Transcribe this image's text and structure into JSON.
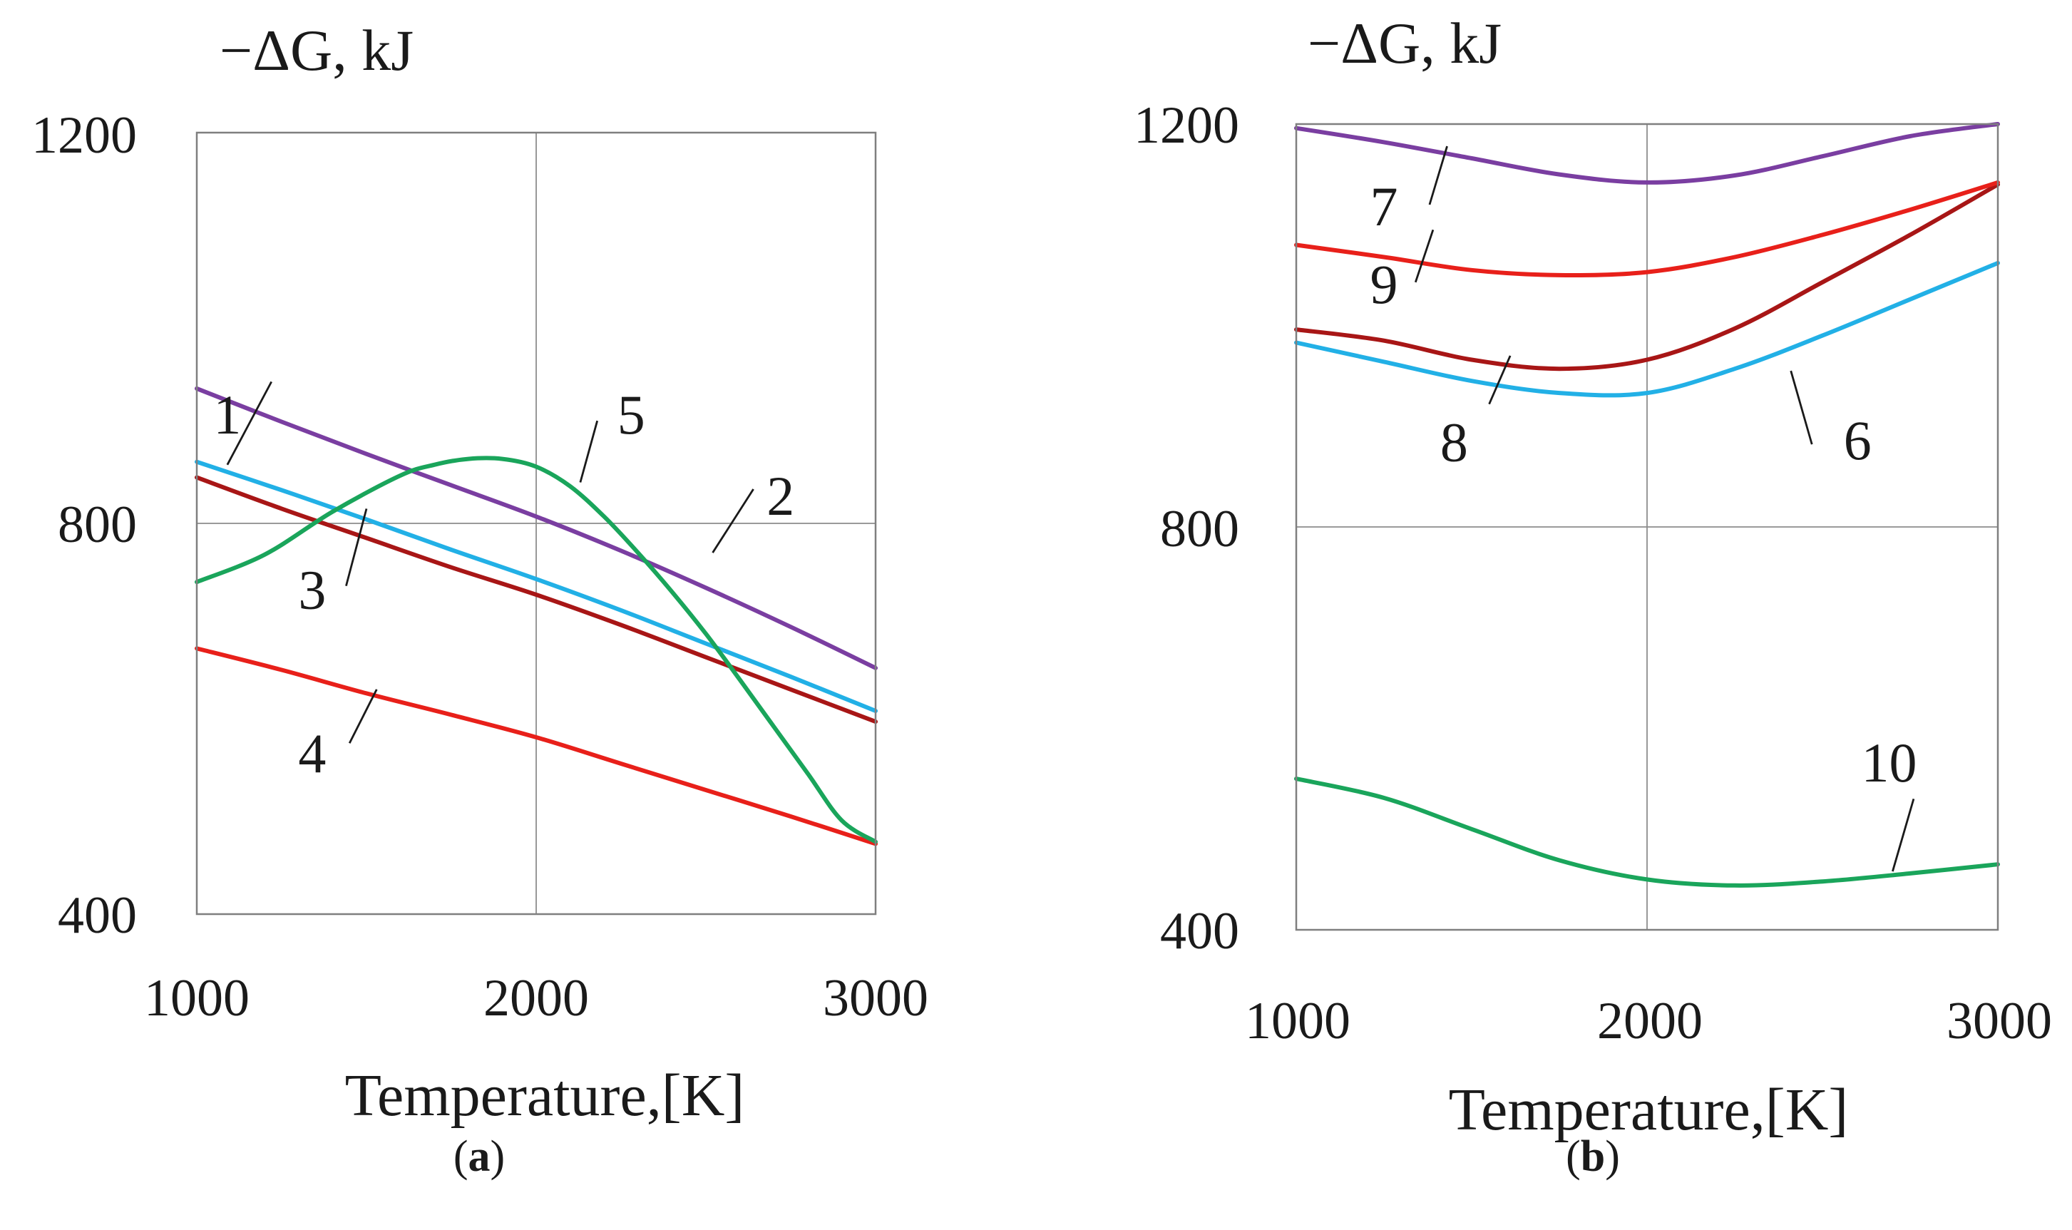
{
  "chart_data": [
    {
      "type": "line",
      "panel_label": "(a)",
      "panel_letter": "a",
      "ylabel": "−ΔG, kJ",
      "xlabel": "Temperature,[K]",
      "xlim": [
        1000,
        3000
      ],
      "ylim": [
        400,
        1200
      ],
      "xticks": [
        "1000",
        "2000",
        "3000"
      ],
      "yticks": [
        "400",
        "800",
        "1200"
      ],
      "grid": true,
      "series": [
        {
          "name": "1",
          "color": "#22b0e6",
          "x": [
            1000,
            1250,
            1500,
            1750,
            2000,
            2250,
            2500,
            2750,
            3000
          ],
          "y": [
            863,
            834,
            804,
            773,
            743,
            711,
            677,
            643,
            608
          ],
          "label_at": [
            1090,
            905
          ],
          "leader": [
            [
              1090,
              860
            ],
            [
              1220,
              945
            ]
          ]
        },
        {
          "name": "2",
          "color": "#7a3ea1",
          "x": [
            1000,
            1250,
            1500,
            1750,
            2000,
            2250,
            2500,
            2750,
            3000
          ],
          "y": [
            938,
            904,
            871,
            839,
            807,
            772,
            734,
            694,
            652
          ],
          "label_at": [
            2720,
            822
          ],
          "leader": [
            [
              2520,
              770
            ],
            [
              2640,
              835
            ]
          ]
        },
        {
          "name": "3",
          "color": "#a81616",
          "x": [
            1000,
            1250,
            1500,
            1750,
            2000,
            2250,
            2500,
            2750,
            3000
          ],
          "y": [
            847,
            815,
            785,
            755,
            727,
            696,
            663,
            630,
            597
          ],
          "label_at": [
            1340,
            726
          ],
          "leader": [
            [
              1440,
              736
            ],
            [
              1500,
              815
            ]
          ]
        },
        {
          "name": "4",
          "color": "#e8201a",
          "x": [
            1000,
            1250,
            1500,
            1750,
            2000,
            2250,
            2500,
            2750,
            3000
          ],
          "y": [
            672,
            650,
            626,
            604,
            581,
            554,
            527,
            500,
            472
          ],
          "label_at": [
            1340,
            558
          ],
          "leader": [
            [
              1450,
              575
            ],
            [
              1530,
              630
            ]
          ]
        },
        {
          "name": "5",
          "color": "#1aa55b",
          "x": [
            1000,
            1200,
            1400,
            1600,
            1700,
            1800,
            1900,
            2000,
            2100,
            2200,
            2300,
            2400,
            2500,
            2600,
            2700,
            2800,
            2900,
            3000
          ],
          "y": [
            740,
            768,
            812,
            849,
            860,
            866,
            866,
            858,
            838,
            807,
            770,
            730,
            687,
            640,
            592,
            544,
            496,
            474
          ],
          "label_at": [
            2280,
            905
          ],
          "leader": [
            [
              2130,
              842
            ],
            [
              2180,
              905
            ]
          ]
        }
      ]
    },
    {
      "type": "line",
      "panel_label": "(b)",
      "panel_letter": "b",
      "ylabel": "−ΔG, kJ",
      "xlabel": "Temperature,[K]",
      "xlim": [
        1000,
        3000
      ],
      "ylim": [
        400,
        1200
      ],
      "xticks": [
        "1000",
        "2000",
        "3000"
      ],
      "yticks": [
        "400",
        "800",
        "1200"
      ],
      "grid": true,
      "series": [
        {
          "name": "6",
          "color": "#22b0e6",
          "x": [
            1000,
            1250,
            1500,
            1750,
            2000,
            2250,
            2500,
            2750,
            3000
          ],
          "y": [
            983,
            964,
            945,
            933,
            933,
            957,
            990,
            1026,
            1062
          ],
          "label_at": [
            2600,
            880
          ],
          "leader": [
            [
              2410,
              955
            ],
            [
              2470,
              882
            ]
          ]
        },
        {
          "name": "7",
          "color": "#7a3ea1",
          "x": [
            1000,
            1250,
            1500,
            1750,
            2000,
            2250,
            2500,
            2750,
            3000
          ],
          "y": [
            1196,
            1182,
            1166,
            1150,
            1142,
            1149,
            1168,
            1188,
            1205
          ],
          "label_at": [
            1250,
            1112
          ],
          "leader": [
            [
              1380,
              1120
            ],
            [
              1430,
              1178
            ]
          ]
        },
        {
          "name": "8",
          "color": "#a81616",
          "x": [
            1000,
            1250,
            1500,
            1750,
            2000,
            2250,
            2500,
            2750,
            3000
          ],
          "y": [
            996,
            985,
            966,
            957,
            966,
            997,
            1043,
            1090,
            1140
          ],
          "label_at": [
            1450,
            878
          ],
          "leader": [
            [
              1550,
              922
            ],
            [
              1610,
              970
            ]
          ]
        },
        {
          "name": "9",
          "color": "#e8201a",
          "x": [
            1000,
            1250,
            1500,
            1750,
            2000,
            2250,
            2500,
            2750,
            3000
          ],
          "y": [
            1080,
            1068,
            1055,
            1050,
            1053,
            1068,
            1090,
            1115,
            1142
          ],
          "label_at": [
            1250,
            1035
          ],
          "leader": [
            [
              1340,
              1043
            ],
            [
              1390,
              1095
            ]
          ]
        },
        {
          "name": "10",
          "color": "#1aa55b",
          "x": [
            1000,
            1250,
            1500,
            1750,
            2000,
            2250,
            2500,
            2750,
            3000
          ],
          "y": [
            550,
            531,
            500,
            469,
            450,
            444,
            448,
            456,
            465
          ],
          "label_at": [
            2690,
            560
          ],
          "leader": [
            [
              2700,
              458
            ],
            [
              2760,
              530
            ]
          ]
        }
      ]
    }
  ]
}
